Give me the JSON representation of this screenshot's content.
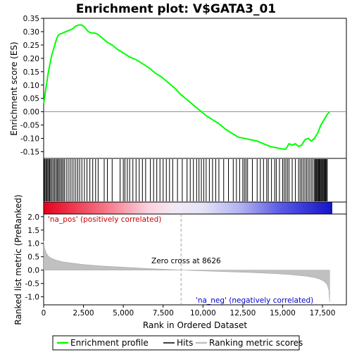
{
  "chart_data": {
    "type": "line",
    "title": "Enrichment plot: V$GATA3_01",
    "top_panel": {
      "ylabel": "Enrichment score (ES)",
      "ylim": [
        -0.175,
        0.35
      ],
      "yticks": [
        "0.35",
        "0.30",
        "0.25",
        "0.20",
        "0.15",
        "0.10",
        "0.05",
        "0.00",
        "-0.05",
        "-0.10",
        "-0.15"
      ],
      "ytick_values": [
        0.35,
        0.3,
        0.25,
        0.2,
        0.15,
        0.1,
        0.05,
        0.0,
        -0.05,
        -0.1,
        -0.15
      ],
      "series": [
        {
          "name": "Enrichment profile",
          "color": "#00ff00",
          "x": [
            0,
            100,
            200,
            300,
            400,
            500,
            600,
            700,
            800,
            900,
            1000,
            1200,
            1400,
            1600,
            1800,
            2000,
            2200,
            2400,
            2600,
            2800,
            3000,
            3200,
            3400,
            3600,
            3800,
            4000,
            4300,
            4600,
            5000,
            5400,
            5800,
            6200,
            6600,
            7000,
            7400,
            7800,
            8200,
            8600,
            9000,
            9400,
            9800,
            10200,
            10600,
            11000,
            11400,
            11800,
            12200,
            12600,
            13000,
            13400,
            13800,
            14200,
            14600,
            15000,
            15200,
            15400,
            15600,
            15800,
            16000,
            16200,
            16400,
            16600,
            16800,
            17000,
            17200,
            17400,
            17600,
            17800,
            17950
          ],
          "values": [
            0.03,
            0.07,
            0.11,
            0.15,
            0.18,
            0.21,
            0.23,
            0.25,
            0.27,
            0.285,
            0.29,
            0.295,
            0.3,
            0.305,
            0.31,
            0.32,
            0.325,
            0.325,
            0.315,
            0.3,
            0.295,
            0.295,
            0.29,
            0.28,
            0.27,
            0.26,
            0.25,
            0.235,
            0.22,
            0.205,
            0.195,
            0.18,
            0.165,
            0.145,
            0.13,
            0.11,
            0.09,
            0.065,
            0.045,
            0.025,
            0.005,
            -0.015,
            -0.03,
            -0.045,
            -0.065,
            -0.08,
            -0.095,
            -0.1,
            -0.105,
            -0.11,
            -0.12,
            -0.13,
            -0.135,
            -0.14,
            -0.14,
            -0.12,
            -0.125,
            -0.12,
            -0.13,
            -0.125,
            -0.105,
            -0.1,
            -0.11,
            -0.1,
            -0.08,
            -0.05,
            -0.03,
            -0.01,
            0.0
          ]
        }
      ]
    },
    "bottom_panel": {
      "ylabel": "Ranked list metric (PreRanked)",
      "xlabel": "Rank in Ordered Dataset",
      "ylim": [
        -1.3,
        2.1
      ],
      "yticks": [
        "2.0",
        "1.5",
        "1.0",
        "0.5",
        "0.0",
        "-0.5",
        "-1.0"
      ],
      "ytick_values": [
        2.0,
        1.5,
        1.0,
        0.5,
        0.0,
        -0.5,
        -1.0
      ],
      "xlim": [
        0,
        19000
      ],
      "xticks": [
        "0",
        "2,500",
        "5,000",
        "7,500",
        "10,000",
        "12,500",
        "15,000",
        "17,500"
      ],
      "xtick_values": [
        0,
        2500,
        5000,
        7500,
        10000,
        12500,
        15000,
        17500
      ],
      "series": [
        {
          "name": "Ranking metric scores",
          "color": "#c0c0c0",
          "x": [
            0,
            50,
            150,
            300,
            500,
            800,
            1200,
            1800,
            2500,
            3500,
            5000,
            6500,
            8000,
            8626,
            10000,
            11500,
            13000,
            14500,
            15500,
            16500,
            17000,
            17300,
            17600,
            17800,
            17900,
            17950
          ],
          "values": [
            1.1,
            0.85,
            0.65,
            0.52,
            0.44,
            0.37,
            0.31,
            0.26,
            0.21,
            0.16,
            0.11,
            0.06,
            0.02,
            0.0,
            -0.03,
            -0.06,
            -0.09,
            -0.13,
            -0.17,
            -0.23,
            -0.28,
            -0.33,
            -0.42,
            -0.55,
            -0.75,
            -1.2
          ]
        }
      ],
      "annotations": {
        "zero_cross": "Zero cross at 8626",
        "zero_cross_x": 8626,
        "pos_label": "'na_pos' (positively correlated)",
        "neg_label": "'na_neg' (negatively correlated)"
      }
    },
    "hits": [
      30,
      80,
      140,
      200,
      260,
      320,
      380,
      440,
      520,
      600,
      680,
      760,
      840,
      900,
      980,
      1060,
      1140,
      1220,
      1300,
      1420,
      1540,
      1660,
      1780,
      1900,
      2020,
      2140,
      2260,
      2400,
      2560,
      2720,
      2900,
      3080,
      3260,
      3420,
      3800,
      4000,
      4300,
      4800,
      5000,
      5100,
      5250,
      5400,
      5600,
      5800,
      6000,
      6200,
      6400,
      6700,
      6900,
      7100,
      7300,
      7500,
      7700,
      7900,
      8100,
      8400,
      8700,
      9000,
      9200,
      9400,
      9600,
      9750,
      9900,
      10050,
      10200,
      10400,
      10600,
      10800,
      11000,
      11300,
      11600,
      11900,
      12100,
      12300,
      12500,
      12600,
      12700,
      12800,
      13100,
      13400,
      13600,
      13800,
      14000,
      14100,
      14300,
      14500,
      14600,
      14800,
      15000,
      15100,
      15200,
      15300,
      15400,
      15600,
      15800,
      16000,
      16100,
      16200,
      16300,
      16400,
      16500,
      16600,
      16700,
      16800,
      16900,
      17000,
      17050,
      17100,
      17150,
      17200,
      17250,
      17300,
      17350,
      17400,
      17450,
      17500,
      17550,
      17600,
      17650,
      17700,
      17750,
      17800
    ],
    "legend": {
      "items": [
        {
          "label": "Enrichment profile",
          "color": "#00ff00"
        },
        {
          "label": "Hits",
          "color": "#000000"
        },
        {
          "label": "Ranking metric scores",
          "color": "#c0c0c0"
        }
      ]
    }
  }
}
